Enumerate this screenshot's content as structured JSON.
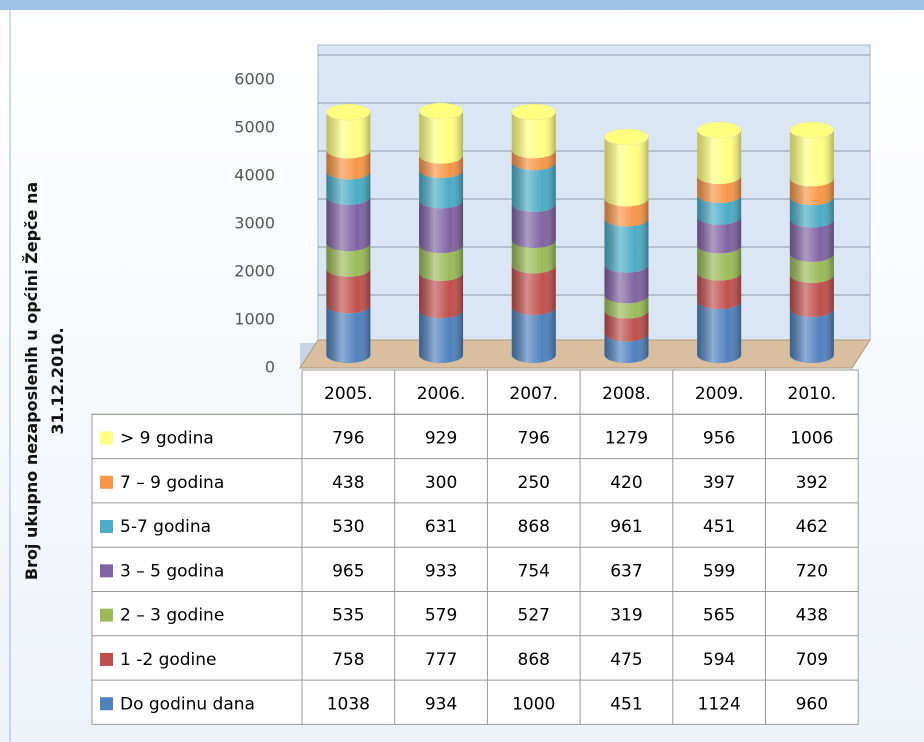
{
  "chart_data": {
    "type": "stacked-cylinder",
    "ylabel": "Broj ukupno nezaposlenih  u općini Žepče na 31.12.2010.",
    "categories": [
      "2005.",
      "2006.",
      "2007.",
      "2008.",
      "2009.",
      "2010."
    ],
    "ylim": [
      0,
      6000
    ],
    "yticks": [
      0,
      1000,
      2000,
      3000,
      4000,
      5000,
      6000
    ],
    "grid": true,
    "series": [
      {
        "name": "Do godinu dana",
        "color": "#4f81bd",
        "values": [
          1038,
          934,
          1000,
          451,
          1124,
          960
        ]
      },
      {
        "name": "1 -2 godine",
        "color": "#c0504d",
        "values": [
          758,
          777,
          868,
          475,
          594,
          709
        ]
      },
      {
        "name": "2 – 3 godine",
        "color": "#9bbb59",
        "values": [
          535,
          579,
          527,
          319,
          565,
          438
        ]
      },
      {
        "name": "3 – 5 godina",
        "color": "#8064a2",
        "values": [
          965,
          933,
          754,
          637,
          599,
          720
        ]
      },
      {
        "name": "5-7 godina",
        "color": "#4bacc6",
        "values": [
          530,
          631,
          868,
          961,
          451,
          462
        ]
      },
      {
        "name": "7 – 9 godina",
        "color": "#f79646",
        "values": [
          438,
          300,
          250,
          420,
          397,
          392
        ]
      },
      {
        "name": "> 9 godina",
        "color": "#ffff80",
        "values": [
          796,
          929,
          796,
          1279,
          956,
          1006
        ]
      }
    ]
  }
}
